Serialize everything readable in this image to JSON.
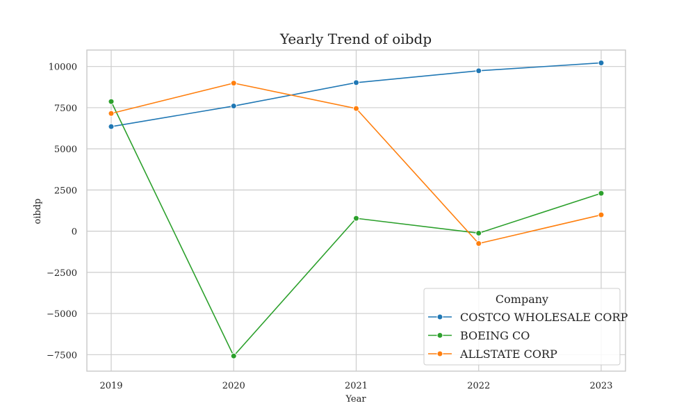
{
  "chart_data": {
    "type": "line",
    "title": "Yearly Trend of oibdp",
    "xlabel": "Year",
    "ylabel": "oibdp",
    "x": [
      "2019",
      "2020",
      "2021",
      "2022",
      "2023"
    ],
    "ylim": [
      -8500,
      11000
    ],
    "yticks": [
      -7500,
      -5000,
      -2500,
      0,
      2500,
      5000,
      7500,
      10000
    ],
    "ytick_labels": [
      "−7500",
      "−5000",
      "−2500",
      "0",
      "2500",
      "5000",
      "7500",
      "10000"
    ],
    "grid": true,
    "legend": {
      "title": "Company",
      "placement": "lower-right"
    },
    "series": [
      {
        "name": "COSTCO WHOLESALE CORP",
        "color": "#1f77b4",
        "values": [
          6350,
          7600,
          9020,
          9740,
          10220
        ]
      },
      {
        "name": "BOEING CO",
        "color": "#2ca02c",
        "values": [
          7870,
          -7580,
          780,
          -120,
          2300
        ]
      },
      {
        "name": "ALLSTATE CORP",
        "color": "#ff7f0e",
        "values": [
          7150,
          8990,
          7450,
          -750,
          990
        ]
      }
    ]
  }
}
